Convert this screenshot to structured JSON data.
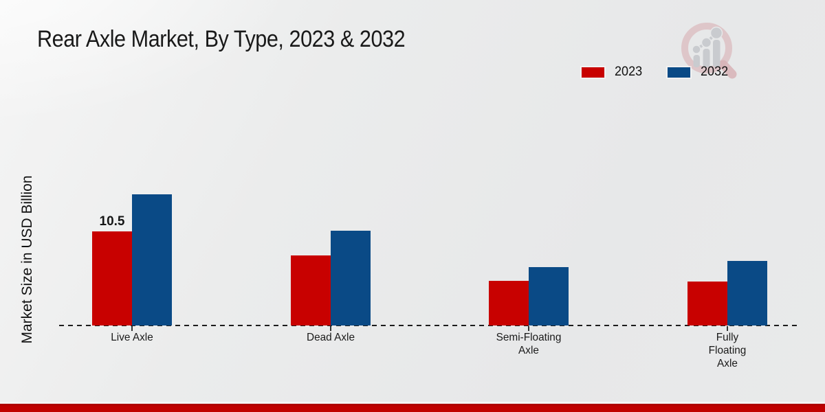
{
  "title": "Rear Axle Market, By Type, 2023 & 2032",
  "colors": {
    "series_2023": "#c80100",
    "series_2032": "#0a4a86",
    "footer_bar": "#c00000",
    "axis_dash": "#1c1c1c",
    "background": "#e9eaea",
    "watermark_ring": "#dcbdc1",
    "watermark_bars": "#c9cbcf"
  },
  "legend": {
    "items": [
      {
        "label": "2023",
        "color": "#c80100"
      },
      {
        "label": "2032",
        "color": "#0a4a86"
      }
    ]
  },
  "watermark_icon": "magnifier-bar-chart-logo",
  "footer": {
    "red_bar": true
  },
  "chart_data": {
    "type": "bar",
    "title": "Rear Axle Market, By Type, 2023 & 2032",
    "xlabel": "",
    "ylabel": "Market Size in USD Billion",
    "categories": [
      "Live Axle",
      "Dead Axle",
      "Semi-Floating\nAxle",
      "Fully\nFloating\nAxle"
    ],
    "series": [
      {
        "name": "2023",
        "color": "#c80100",
        "values": [
          10.5,
          7.8,
          5.0,
          4.9
        ],
        "labels": [
          "10.5",
          "",
          "",
          ""
        ]
      },
      {
        "name": "2032",
        "color": "#0a4a86",
        "values": [
          14.6,
          10.6,
          6.5,
          7.2
        ],
        "labels": [
          "",
          "",
          "",
          ""
        ]
      }
    ],
    "ylim": [
      0,
      16
    ],
    "grid": false,
    "y_axis_visible": false,
    "baseline_style": "dashed",
    "legend_position": "top-right",
    "annotated_value": "10.5"
  }
}
